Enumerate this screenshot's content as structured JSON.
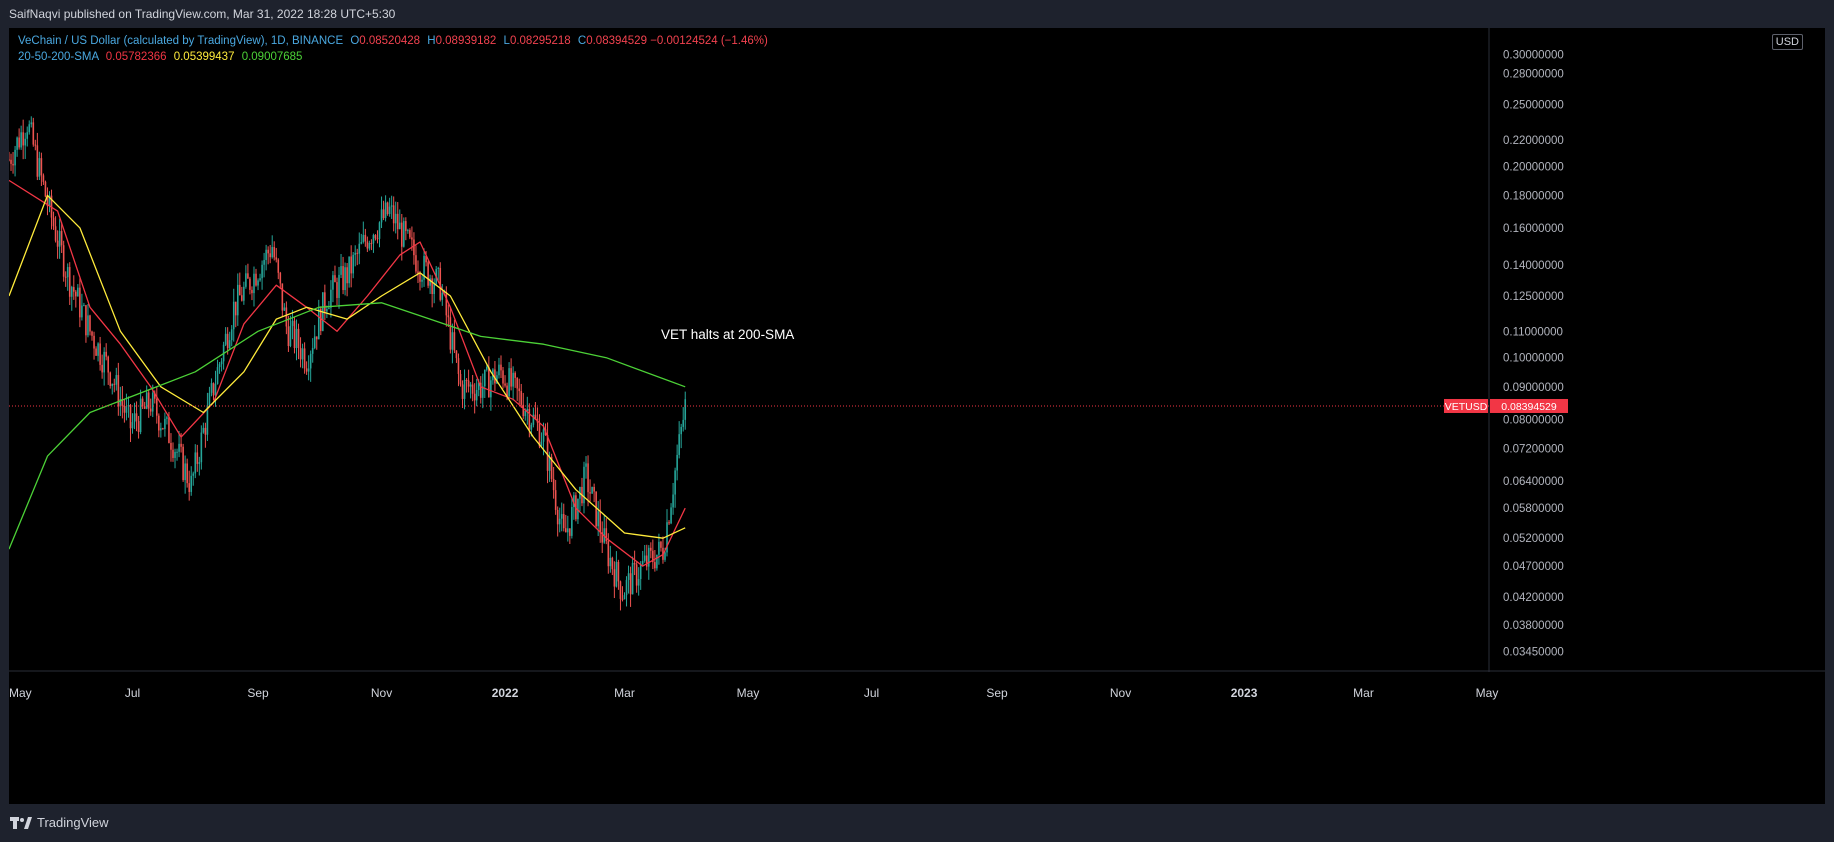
{
  "header": {
    "published_by": "SaifNaqvi published on TradingView.com, Mar 31, 2022 18:28 UTC+5:30"
  },
  "legend": {
    "symbol": "VeChain / US Dollar (calculated by TradingView), 1D, BINANCE",
    "open_label": "O",
    "open": "0.08520428",
    "high_label": "H",
    "high": "0.08939182",
    "low_label": "L",
    "low": "0.08295218",
    "close_label": "C",
    "close": "0.08394529",
    "change": "−0.00124524 (−1.46%)",
    "indicator": "20-50-200-SMA",
    "sma20": "0.05782366",
    "sma50": "0.05399437",
    "sma200": "0.09007685"
  },
  "currency": "USD",
  "price_tag": {
    "symbol": "VETUSD",
    "value": "0.08394529"
  },
  "footer": {
    "brand": "TradingView"
  },
  "colors": {
    "up": "#26a69a",
    "down": "#ef5350",
    "sma20": "#f23645",
    "sma50": "#ffeb3b",
    "sma200": "#4cd137",
    "tag": "#f23645"
  },
  "chart_data": {
    "type": "line",
    "annotation": "VET halts at 200-SMA",
    "scale": "log",
    "ylim": [
      0.0325,
      0.33
    ],
    "y_ticks": [
      "0.30000000",
      "0.28000000",
      "0.25000000",
      "0.22000000",
      "0.20000000",
      "0.18000000",
      "0.16000000",
      "0.14000000",
      "0.12500000",
      "0.11000000",
      "0.10000000",
      "0.09000000",
      "0.08000000",
      "0.07200000",
      "0.06400000",
      "0.05800000",
      "0.05200000",
      "0.04700000",
      "0.04200000",
      "0.03800000",
      "0.03450000"
    ],
    "x_ticks": [
      "May",
      "Jul",
      "Sep",
      "Nov",
      "2022",
      "Mar",
      "May",
      "Jul",
      "Sep",
      "Nov",
      "2023",
      "Mar",
      "May"
    ],
    "x_range": [
      "2021-05-01",
      "2023-05-01"
    ],
    "last_price": 0.08394529,
    "price_series": {
      "name": "VETUSD",
      "x": [
        "2021-05-01",
        "2021-05-10",
        "2021-05-20",
        "2021-05-30",
        "2021-06-10",
        "2021-06-20",
        "2021-06-30",
        "2021-07-10",
        "2021-07-20",
        "2021-07-30",
        "2021-08-10",
        "2021-08-20",
        "2021-08-30",
        "2021-09-08",
        "2021-09-15",
        "2021-09-25",
        "2021-10-05",
        "2021-10-15",
        "2021-10-25",
        "2021-11-05",
        "2021-11-12",
        "2021-11-20",
        "2021-11-30",
        "2021-12-10",
        "2021-12-20",
        "2021-12-30",
        "2022-01-10",
        "2022-01-20",
        "2022-01-30",
        "2022-02-10",
        "2022-02-20",
        "2022-02-28",
        "2022-03-10",
        "2022-03-20",
        "2022-03-31"
      ],
      "y": [
        0.205,
        0.235,
        0.175,
        0.135,
        0.11,
        0.095,
        0.078,
        0.085,
        0.075,
        0.063,
        0.09,
        0.12,
        0.135,
        0.15,
        0.112,
        0.1,
        0.125,
        0.135,
        0.155,
        0.17,
        0.155,
        0.14,
        0.13,
        0.09,
        0.09,
        0.095,
        0.085,
        0.075,
        0.052,
        0.065,
        0.05,
        0.043,
        0.047,
        0.05,
        0.084
      ]
    },
    "series": [
      {
        "name": "20-SMA",
        "x": [
          "2021-05-01",
          "2021-05-25",
          "2021-06-10",
          "2021-06-25",
          "2021-07-10",
          "2021-07-25",
          "2021-08-10",
          "2021-08-25",
          "2021-09-10",
          "2021-09-25",
          "2021-10-10",
          "2021-10-25",
          "2021-11-10",
          "2021-11-20",
          "2021-12-05",
          "2021-12-20",
          "2022-01-05",
          "2022-01-20",
          "2022-02-05",
          "2022-02-20",
          "2022-03-10",
          "2022-03-20",
          "2022-03-31"
        ],
        "y": [
          0.19,
          0.17,
          0.12,
          0.105,
          0.09,
          0.075,
          0.085,
          0.113,
          0.13,
          0.12,
          0.11,
          0.125,
          0.145,
          0.152,
          0.12,
          0.09,
          0.086,
          0.078,
          0.058,
          0.052,
          0.047,
          0.049,
          0.058
        ]
      },
      {
        "name": "50-SMA",
        "x": [
          "2021-05-01",
          "2021-05-20",
          "2021-06-05",
          "2021-06-25",
          "2021-07-15",
          "2021-08-05",
          "2021-08-25",
          "2021-09-10",
          "2021-09-25",
          "2021-10-15",
          "2021-11-01",
          "2021-11-20",
          "2021-12-05",
          "2021-12-25",
          "2022-01-15",
          "2022-02-05",
          "2022-03-01",
          "2022-03-20",
          "2022-03-31"
        ],
        "y": [
          0.125,
          0.18,
          0.16,
          0.11,
          0.09,
          0.082,
          0.095,
          0.115,
          0.12,
          0.115,
          0.125,
          0.136,
          0.125,
          0.095,
          0.075,
          0.062,
          0.053,
          0.052,
          0.054
        ]
      },
      {
        "name": "200-SMA",
        "x": [
          "2021-05-01",
          "2021-05-20",
          "2021-06-10",
          "2021-07-05",
          "2021-08-01",
          "2021-09-01",
          "2021-10-01",
          "2021-11-01",
          "2021-11-25",
          "2021-12-20",
          "2022-01-20",
          "2022-02-20",
          "2022-03-31"
        ],
        "y": [
          0.05,
          0.07,
          0.082,
          0.088,
          0.095,
          0.11,
          0.12,
          0.122,
          0.115,
          0.108,
          0.105,
          0.1,
          0.09
        ]
      }
    ]
  }
}
